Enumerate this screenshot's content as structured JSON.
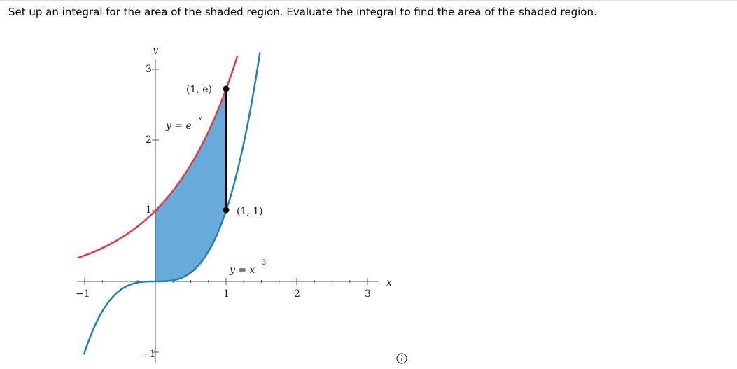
{
  "question": "Set up an integral for the area of the shaded region. Evaluate the integral to find the area of the shaded region.",
  "graph": {
    "x_axis_label": "x",
    "y_axis_label": "y",
    "x_tick_labels": [
      "−1",
      "1",
      "2",
      "3"
    ],
    "y_tick_labels": [
      "−1",
      "1",
      "2",
      "3"
    ],
    "point_labels": [
      "(1, e)",
      "(1, 1)"
    ],
    "curve_labels": [
      "y = e",
      "x",
      "y = x",
      "3"
    ]
  }
}
